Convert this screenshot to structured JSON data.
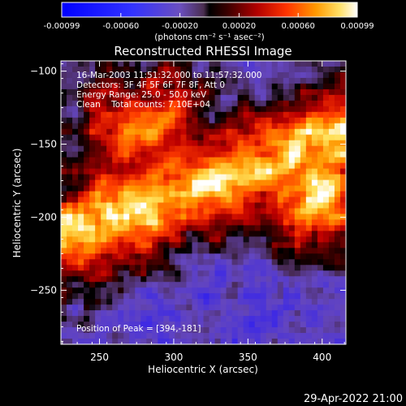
{
  "chart_data": {
    "type": "heatmap",
    "title": "Reconstructed RHESSI Image",
    "xlabel": "Heliocentric X (arcsec)",
    "ylabel": "Heliocentric Y (arcsec)",
    "xlim": [
      224,
      416
    ],
    "ylim": [
      -287,
      -93
    ],
    "xticks": [
      250,
      300,
      350,
      400
    ],
    "yticks": [
      -100,
      -150,
      -200,
      -250
    ],
    "colorbar": {
      "range": [
        -0.00099,
        0.00099
      ],
      "ticks": [
        "-0.00099",
        "-0.00060",
        "-0.00020",
        "0.00020",
        "0.00060",
        "0.00099"
      ],
      "units": "(photons cm⁻² s⁻¹ asec⁻²)"
    },
    "annotations": [
      "16-Mar-2003 11:51:32.000 to 11:57:32.000",
      "Detectors: 3F 4F 5F 6F 7F 8F, Att 0",
      "Energy Range: 25.0 - 50.0 keV",
      "Clean    Total counts: 7.10E+04"
    ],
    "peak_label": "Position of Peak = [394,-181]",
    "peak": {
      "x": 394,
      "y": -181
    }
  },
  "footer": {
    "timestamp": "29-Apr-2022 21:00"
  }
}
